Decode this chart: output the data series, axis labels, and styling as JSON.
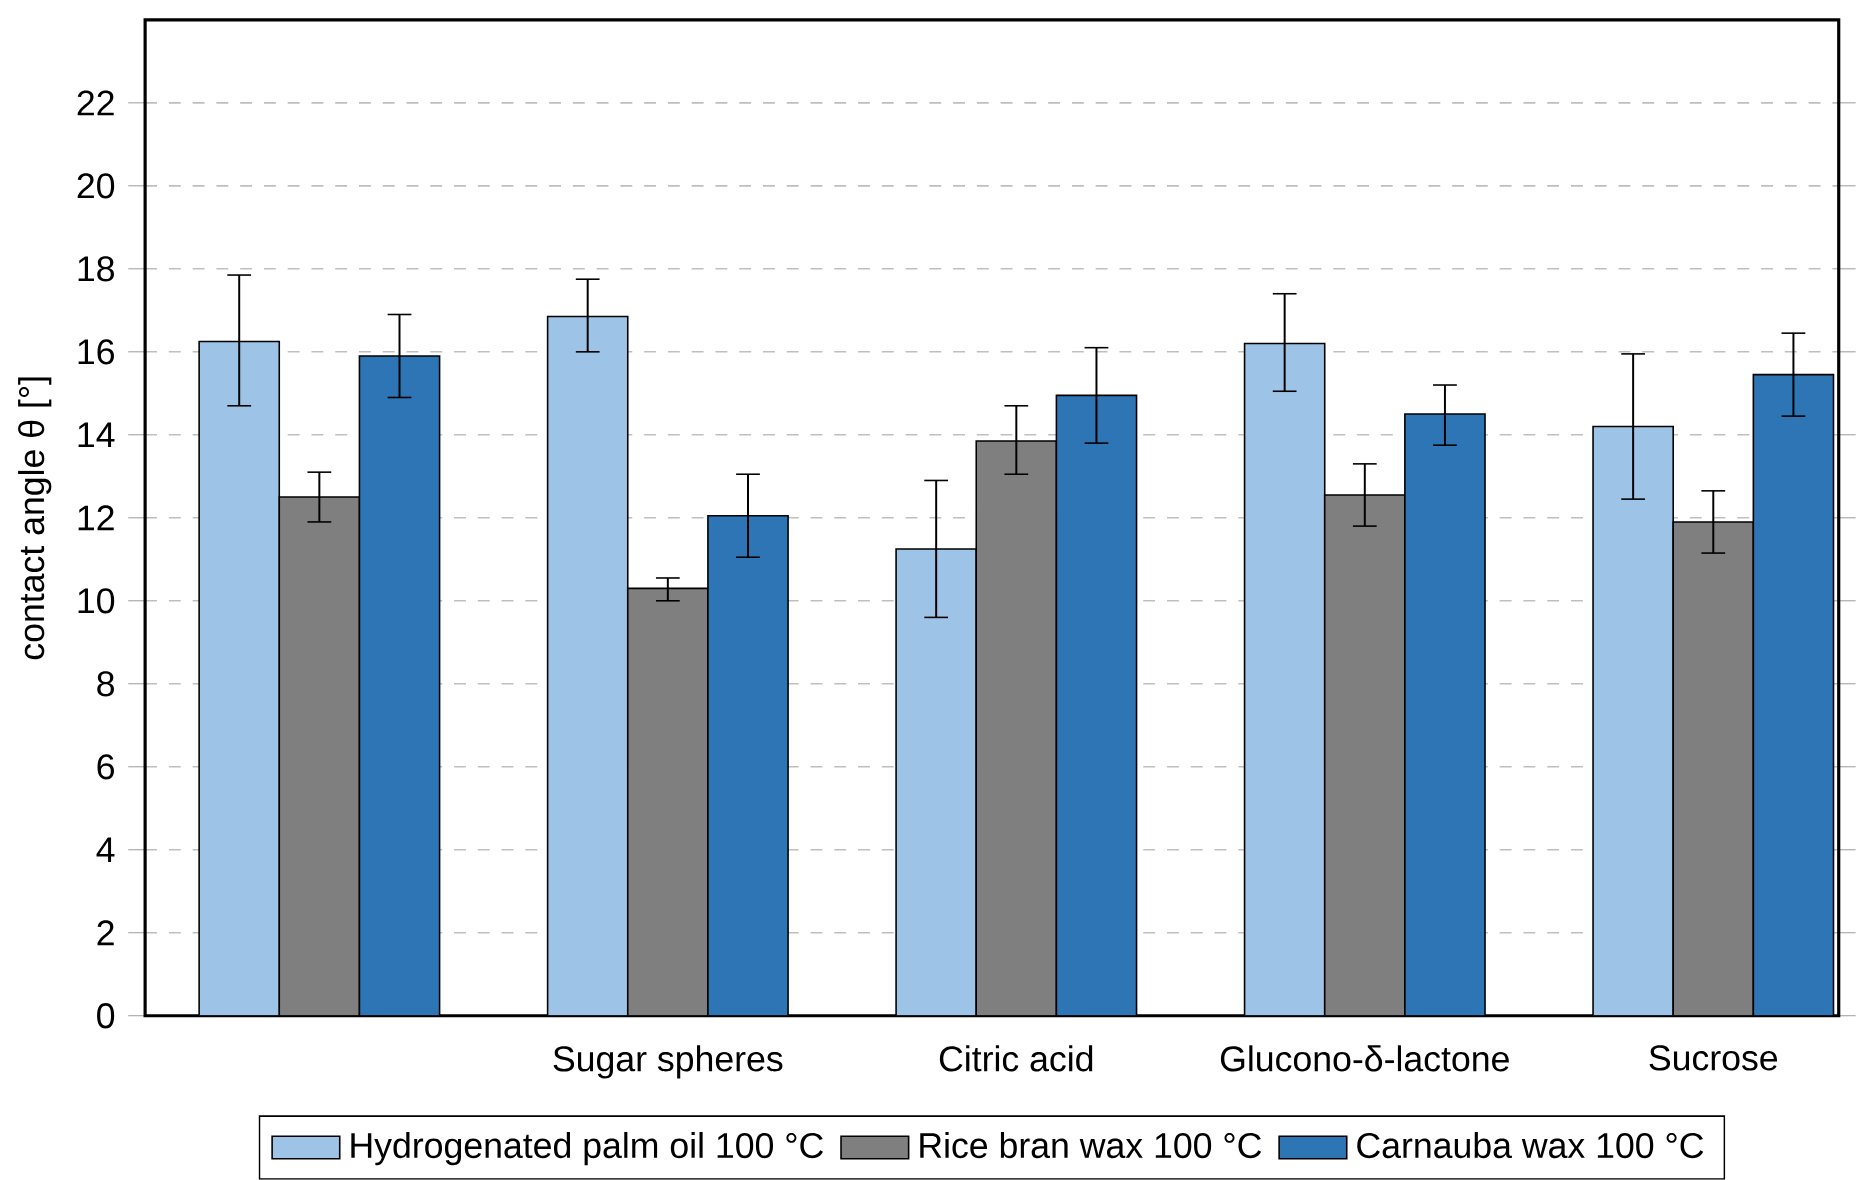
{
  "chart_data": {
    "type": "bar",
    "ylabel": "contact angle θ [°]",
    "categories": [
      null,
      "Sugar spheres",
      "Citric acid",
      "Glucono-δ-lactone",
      "Sucrose"
    ],
    "ylim": [
      0,
      24
    ],
    "yticks": [
      0,
      2,
      4,
      6,
      8,
      10,
      12,
      14,
      16,
      18,
      20,
      22
    ],
    "grid": "y",
    "legend": "bottom",
    "series": [
      {
        "name": "Hydrogenated palm oil 100 °C",
        "color": "#9dc3e6",
        "values": [
          16.25,
          16.85,
          11.25,
          16.2,
          14.2
        ],
        "errors": [
          [
            14.7,
            17.85
          ],
          [
            16.0,
            17.75
          ],
          [
            9.6,
            12.9
          ],
          [
            15.05,
            17.4
          ],
          [
            12.45,
            15.95
          ]
        ]
      },
      {
        "name": "Rice bran wax 100 °C",
        "color": "#7f7f7f",
        "values": [
          12.5,
          10.3,
          13.85,
          12.55,
          11.9
        ],
        "errors": [
          [
            11.9,
            13.1
          ],
          [
            10.0,
            10.55
          ],
          [
            13.05,
            14.7
          ],
          [
            11.8,
            13.3
          ],
          [
            11.15,
            12.65
          ]
        ]
      },
      {
        "name": "Carnauba wax 100 °C",
        "color": "#2e75b6",
        "values": [
          15.9,
          12.05,
          14.95,
          14.5,
          15.45
        ],
        "errors": [
          [
            14.9,
            16.9
          ],
          [
            11.05,
            13.05
          ],
          [
            13.8,
            16.1
          ],
          [
            13.75,
            15.2
          ],
          [
            14.45,
            16.45
          ]
        ]
      }
    ]
  }
}
